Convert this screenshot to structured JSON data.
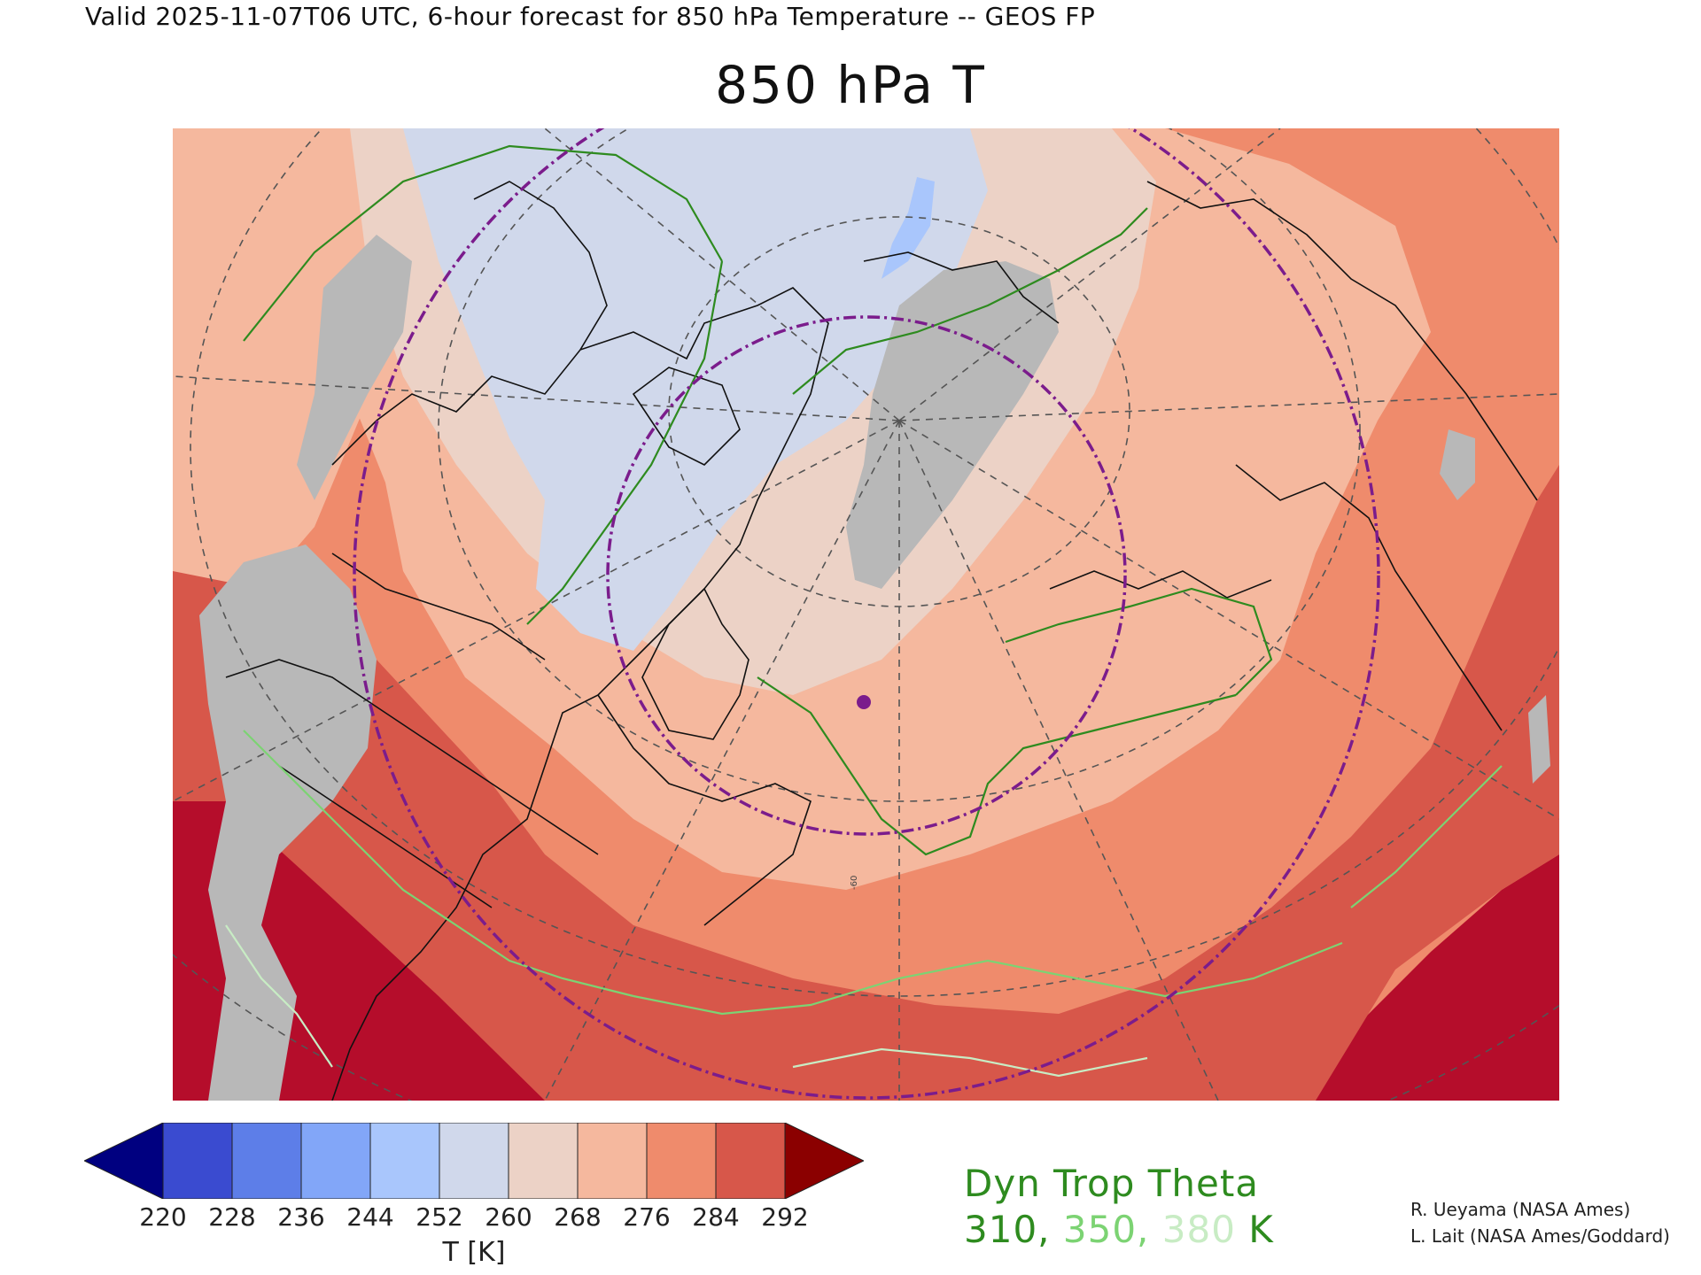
{
  "header": {
    "valid_line": "Valid 2025-11-07T06 UTC, 6-hour forecast for 850 hPa Temperature -- GEOS FP",
    "title": "850 hPa T"
  },
  "colorbar": {
    "levels": [
      "220",
      "228",
      "236",
      "244",
      "252",
      "260",
      "268",
      "276",
      "284",
      "292"
    ],
    "colors": [
      "#3a4bd0",
      "#5d7ee8",
      "#82a6f8",
      "#a9c6fc",
      "#d0d8eb",
      "#ecd2c6",
      "#f5b89e",
      "#ef8b6c",
      "#d7574a"
    ],
    "under_color": "#000080",
    "over_color": "#8b0000",
    "label": "T [K]"
  },
  "overlay": {
    "title": "Dyn Trop Theta",
    "values": [
      {
        "text": "310",
        "color": "#2e8b1f"
      },
      {
        "text": "350",
        "color": "#7cd373"
      },
      {
        "text": "380",
        "color": "#c8ecc4"
      }
    ],
    "separator": ", ",
    "unit": " K"
  },
  "map": {
    "contour_label": "-60"
  },
  "credits": [
    "R. Ueyama (NASA Ames)",
    "L. Lait (NASA Ames/Goddard)"
  ]
}
